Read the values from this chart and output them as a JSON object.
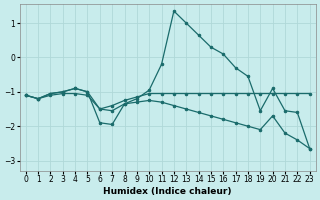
{
  "xlabel": "Humidex (Indice chaleur)",
  "xlim": [
    -0.5,
    23.5
  ],
  "ylim": [
    -3.3,
    1.55
  ],
  "yticks": [
    -3,
    -2,
    -1,
    0,
    1
  ],
  "xticks": [
    0,
    1,
    2,
    3,
    4,
    5,
    6,
    7,
    8,
    9,
    10,
    11,
    12,
    13,
    14,
    15,
    16,
    17,
    18,
    19,
    20,
    21,
    22,
    23
  ],
  "bg_color": "#c8ecec",
  "line_color": "#1a6b6b",
  "grid_color": "#b0d8d8",
  "lines": [
    {
      "x": [
        0,
        1,
        2,
        3,
        4,
        5,
        6,
        7,
        8,
        9,
        10,
        11,
        12,
        13,
        14,
        15,
        16,
        17,
        18,
        19,
        20,
        21,
        22,
        23
      ],
      "y": [
        -1.1,
        -1.2,
        -1.05,
        -1.0,
        -0.9,
        -1.0,
        -1.9,
        -1.95,
        -1.35,
        -1.2,
        -0.95,
        -0.2,
        1.35,
        1.0,
        0.65,
        0.3,
        0.1,
        -0.3,
        -0.55,
        -1.55,
        -0.9,
        -1.55,
        -1.6,
        -2.65
      ]
    },
    {
      "x": [
        0,
        1,
        2,
        3,
        4,
        5,
        6,
        7,
        8,
        9,
        10,
        11,
        12,
        13,
        14,
        15,
        16,
        17,
        18,
        19,
        20,
        21,
        22,
        23
      ],
      "y": [
        -1.1,
        -1.2,
        -1.05,
        -1.0,
        -0.9,
        -1.0,
        -1.5,
        -1.4,
        -1.25,
        -1.15,
        -1.05,
        -1.05,
        -1.05,
        -1.05,
        -1.05,
        -1.05,
        -1.05,
        -1.05,
        -1.05,
        -1.05,
        -1.05,
        -1.05,
        -1.05,
        -1.05
      ]
    },
    {
      "x": [
        0,
        1,
        2,
        3,
        4,
        5,
        6,
        7,
        8,
        9,
        10,
        11,
        12,
        13,
        14,
        15,
        16,
        17,
        18,
        19,
        20,
        21,
        22,
        23
      ],
      "y": [
        -1.1,
        -1.2,
        -1.1,
        -1.05,
        -1.05,
        -1.1,
        -1.5,
        -1.55,
        -1.35,
        -1.3,
        -1.25,
        -1.3,
        -1.4,
        -1.5,
        -1.6,
        -1.7,
        -1.8,
        -1.9,
        -2.0,
        -2.1,
        -1.7,
        -2.2,
        -2.4,
        -2.65
      ]
    }
  ]
}
